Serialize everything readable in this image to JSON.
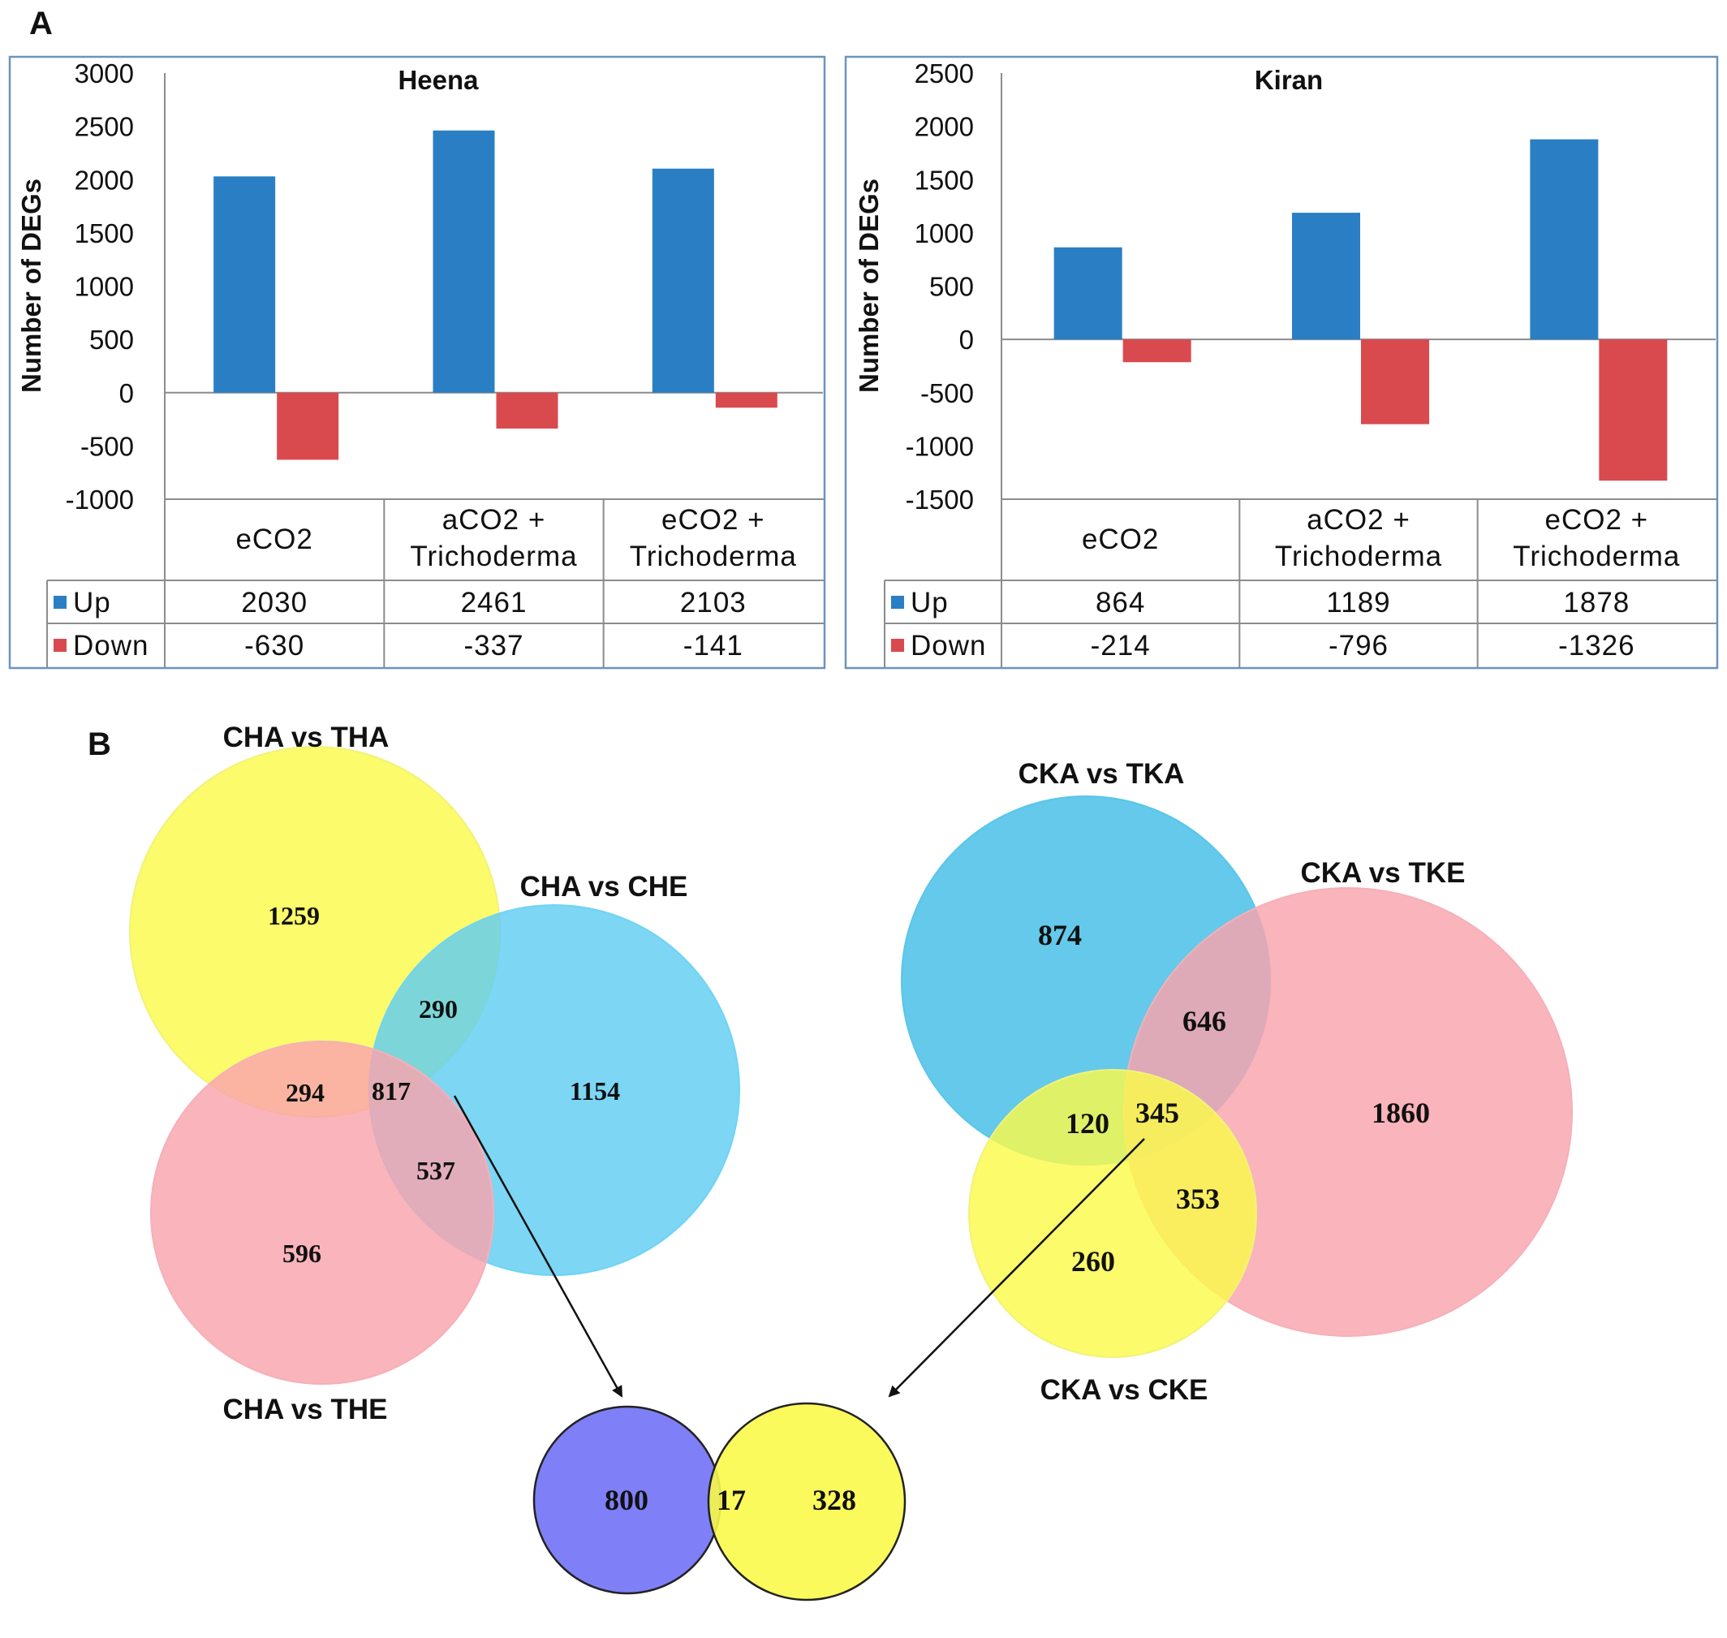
{
  "panel_a": {
    "letter": "A"
  },
  "panel_b": {
    "letter": "B"
  },
  "colors": {
    "up": "#2a7fc4",
    "down": "#d94a4f",
    "frame": "#6b94bf"
  },
  "chart_data": [
    {
      "type": "bar",
      "title": "Heena",
      "ylabel": "Number of DEGs",
      "ylim": [
        -1000,
        3000
      ],
      "yticks": [
        "3000",
        "2500",
        "2000",
        "1500",
        "1000",
        "500",
        "0",
        "-500",
        "-1000"
      ],
      "ytick_values": [
        3000,
        2500,
        2000,
        1500,
        1000,
        500,
        0,
        -500,
        -1000
      ],
      "categories": [
        [
          "eCO2"
        ],
        [
          "aCO2 +",
          "Trichoderma"
        ],
        [
          "eCO2 +",
          "Trichoderma"
        ]
      ],
      "series": [
        {
          "name": "Up",
          "values": [
            2030,
            2461,
            2103
          ],
          "labels": [
            "2030",
            "2461",
            "2103"
          ]
        },
        {
          "name": "Down",
          "values": [
            -630,
            -337,
            -141
          ],
          "labels": [
            "-630",
            "-337",
            "-141"
          ]
        }
      ],
      "grid": false,
      "legend": "data table"
    },
    {
      "type": "bar",
      "title": "Kiran",
      "ylabel": "Number of DEGs",
      "ylim": [
        -1500,
        2500
      ],
      "yticks": [
        "2500",
        "2000",
        "1500",
        "1000",
        "500",
        "0",
        "-500",
        "-1000",
        "-1500"
      ],
      "ytick_values": [
        2500,
        2000,
        1500,
        1000,
        500,
        0,
        -500,
        -1000,
        -1500
      ],
      "categories": [
        [
          "eCO2"
        ],
        [
          "aCO2 +",
          "Trichoderma"
        ],
        [
          "eCO2 +",
          "Trichoderma"
        ]
      ],
      "series": [
        {
          "name": "Up",
          "values": [
            864,
            1189,
            1878
          ],
          "labels": [
            "864",
            "1189",
            "1878"
          ]
        },
        {
          "name": "Down",
          "values": [
            -214,
            -796,
            -1326
          ],
          "labels": [
            "-214",
            "-796",
            "-1326"
          ]
        }
      ],
      "grid": false,
      "legend": "data table"
    }
  ],
  "venn_heena": {
    "sets": [
      {
        "name": "CHA vs THA",
        "color": "#fafa4a"
      },
      {
        "name": "CHA vs CHE",
        "color": "#5fcdf2"
      },
      {
        "name": "CHA vs THE",
        "color": "#f9a3ad"
      }
    ],
    "regions": [
      "1259",
      "290",
      "1154",
      "294",
      "817",
      "537",
      "596"
    ]
  },
  "venn_kiran": {
    "sets": [
      {
        "name": "CKA vs TKA",
        "color": "#49bfe6"
      },
      {
        "name": "CKA vs TKE",
        "color": "#f9a3ad"
      },
      {
        "name": "CKA vs CKE",
        "color": "#fafa4a"
      }
    ],
    "regions": [
      "874",
      "646",
      "1860",
      "120",
      "345",
      "353",
      "260"
    ]
  },
  "venn_common": {
    "colors": [
      "#7f7ff7",
      "#fafa4a"
    ],
    "regions": [
      "800",
      "17",
      "328"
    ]
  }
}
